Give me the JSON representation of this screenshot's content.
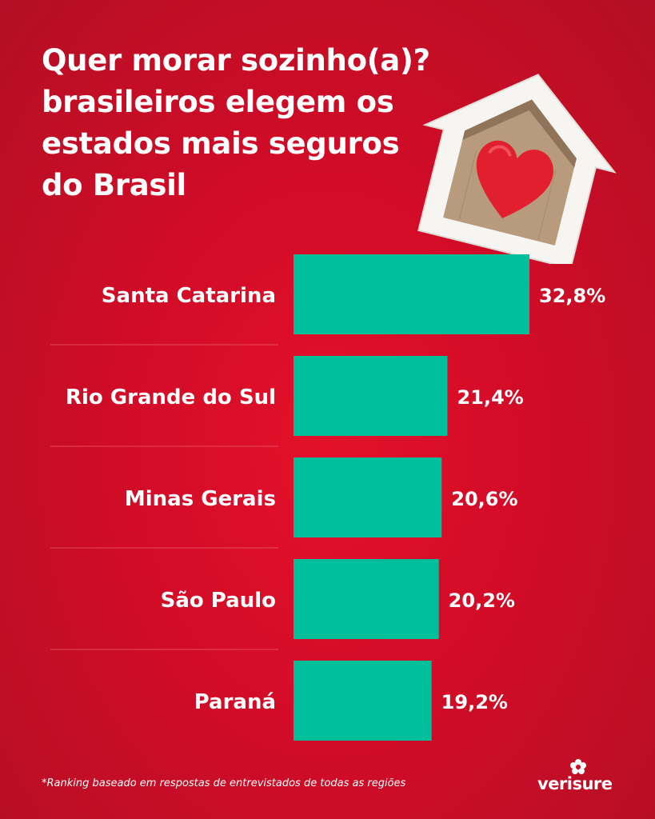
{
  "title_lines": [
    "Quer morar sozinho(a)?",
    "brasileiros elegem os",
    "estados mais seguros",
    "do Brasil"
  ],
  "footnote": "*Ranking baseado em respostas de entrevistados de todas as regiões",
  "brand": "verisure",
  "colors": {
    "background": "#d10c27",
    "bar": "#00bf9b",
    "divider": "#e8495c",
    "text": "#ffffff"
  },
  "chart_data": {
    "type": "bar",
    "orientation": "horizontal",
    "categories": [
      "Santa Catarina",
      "Rio Grande do Sul",
      "Minas Gerais",
      "São Paulo",
      "Paraná"
    ],
    "values": [
      32.8,
      21.4,
      20.6,
      20.2,
      19.2
    ],
    "value_labels": [
      "32,8%",
      "21,4%",
      "20,6%",
      "20,2%",
      "19,2%"
    ],
    "unit": "%",
    "grid": false,
    "legend": "none"
  }
}
